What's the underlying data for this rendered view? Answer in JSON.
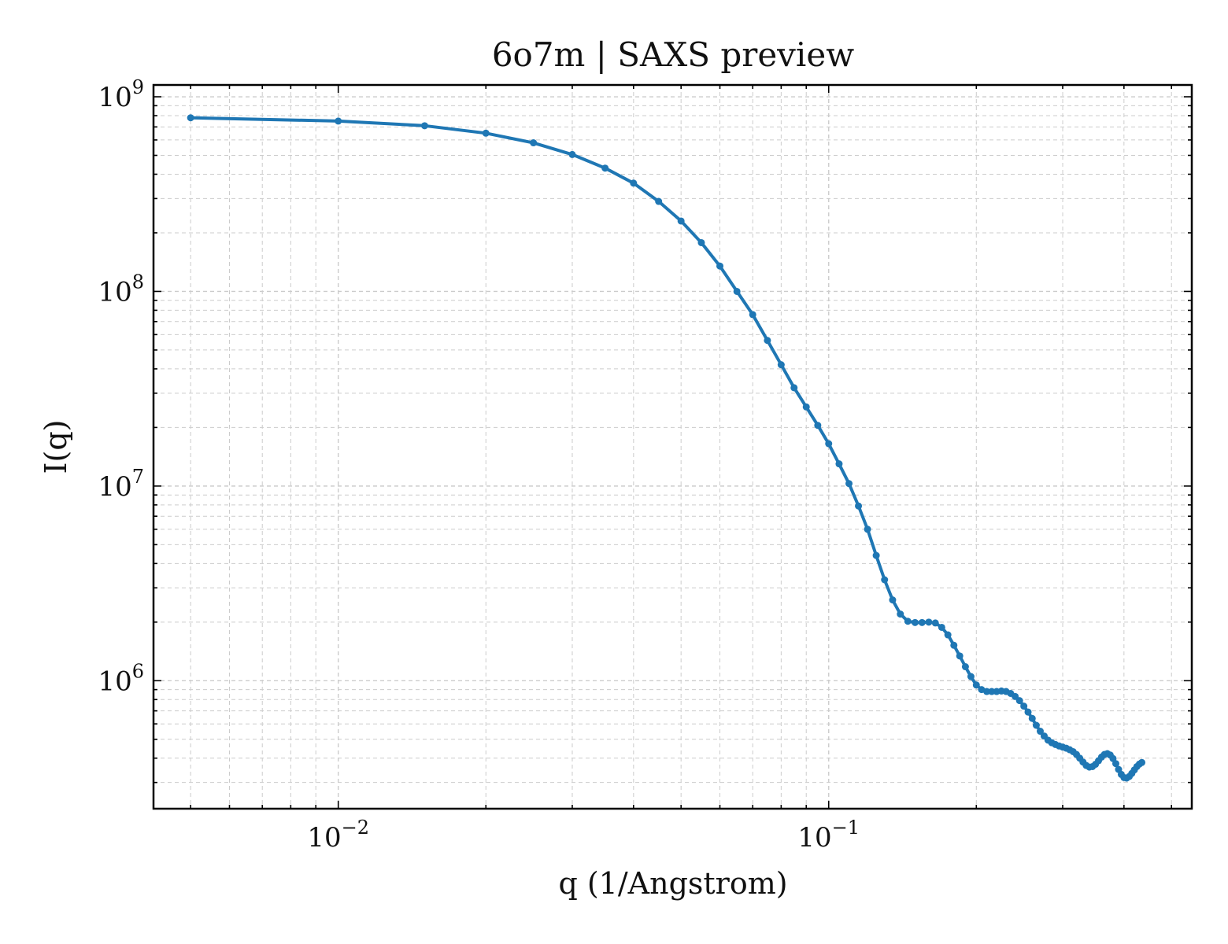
{
  "chart_data": {
    "type": "line",
    "title": "6o7m | SAXS preview",
    "xlabel": "q (1/Angstrom)",
    "ylabel": "I(q)",
    "xscale": "log",
    "yscale": "log",
    "xlim": [
      0.0042,
      0.55
    ],
    "ylim": [
      220000,
      1150000000
    ],
    "grid": true,
    "legend": "none",
    "colors": {
      "line": "#1f77b4",
      "grid": "#cccccc",
      "axes": "#000000"
    },
    "x_ticks": [
      {
        "value": 0.01,
        "base": "10",
        "exp": "−2"
      },
      {
        "value": 0.1,
        "base": "10",
        "exp": "−1"
      }
    ],
    "y_ticks": [
      {
        "value": 1000000,
        "base": "10",
        "exp": "6"
      },
      {
        "value": 10000000,
        "base": "10",
        "exp": "7"
      },
      {
        "value": 100000000,
        "base": "10",
        "exp": "8"
      },
      {
        "value": 1000000000,
        "base": "10",
        "exp": "9"
      }
    ],
    "series": [
      {
        "points": [
          [
            0.005,
            780000000
          ],
          [
            0.01,
            750000000
          ],
          [
            0.015,
            710000000
          ],
          [
            0.02,
            650000000
          ],
          [
            0.025,
            580000000
          ],
          [
            0.03,
            505000000
          ],
          [
            0.035,
            430000000
          ],
          [
            0.04,
            360000000
          ],
          [
            0.045,
            290000000
          ],
          [
            0.05,
            230000000
          ],
          [
            0.055,
            178000000
          ],
          [
            0.06,
            135000000
          ],
          [
            0.065,
            100000000
          ],
          [
            0.07,
            76000000
          ],
          [
            0.075,
            56000000
          ],
          [
            0.08,
            42000000
          ],
          [
            0.085,
            32000000
          ],
          [
            0.09,
            25500000
          ],
          [
            0.095,
            20500000
          ],
          [
            0.1,
            16500000
          ],
          [
            0.105,
            13000000
          ],
          [
            0.11,
            10300000
          ],
          [
            0.115,
            7900000
          ],
          [
            0.12,
            6000000
          ],
          [
            0.125,
            4400000
          ],
          [
            0.13,
            3300000
          ],
          [
            0.135,
            2600000
          ],
          [
            0.14,
            2200000
          ],
          [
            0.145,
            2020000
          ],
          [
            0.15,
            1990000
          ],
          [
            0.155,
            1990000
          ],
          [
            0.16,
            2000000
          ],
          [
            0.165,
            1980000
          ],
          [
            0.17,
            1880000
          ],
          [
            0.175,
            1720000
          ],
          [
            0.18,
            1520000
          ],
          [
            0.185,
            1340000
          ],
          [
            0.19,
            1180000
          ],
          [
            0.195,
            1050000
          ],
          [
            0.2,
            950000
          ],
          [
            0.205,
            900000
          ],
          [
            0.21,
            880000
          ],
          [
            0.215,
            880000
          ],
          [
            0.22,
            880000
          ],
          [
            0.225,
            885000
          ],
          [
            0.23,
            880000
          ],
          [
            0.235,
            860000
          ],
          [
            0.24,
            830000
          ],
          [
            0.245,
            790000
          ],
          [
            0.25,
            740000
          ],
          [
            0.255,
            690000
          ],
          [
            0.26,
            640000
          ],
          [
            0.265,
            590000
          ],
          [
            0.27,
            550000
          ],
          [
            0.275,
            520000
          ],
          [
            0.28,
            495000
          ],
          [
            0.285,
            480000
          ],
          [
            0.29,
            470000
          ],
          [
            0.295,
            462000
          ],
          [
            0.3,
            456000
          ],
          [
            0.305,
            450000
          ],
          [
            0.31,
            442000
          ],
          [
            0.315,
            432000
          ],
          [
            0.32,
            418000
          ],
          [
            0.325,
            400000
          ],
          [
            0.33,
            382000
          ],
          [
            0.335,
            367000
          ],
          [
            0.34,
            360000
          ],
          [
            0.345,
            362000
          ],
          [
            0.35,
            372000
          ],
          [
            0.355,
            388000
          ],
          [
            0.36,
            405000
          ],
          [
            0.365,
            418000
          ],
          [
            0.37,
            422000
          ],
          [
            0.375,
            415000
          ],
          [
            0.38,
            398000
          ],
          [
            0.385,
            375000
          ],
          [
            0.39,
            350000
          ],
          [
            0.395,
            330000
          ],
          [
            0.4,
            318000
          ],
          [
            0.405,
            316000
          ],
          [
            0.41,
            322000
          ],
          [
            0.415,
            334000
          ],
          [
            0.42,
            348000
          ],
          [
            0.425,
            362000
          ],
          [
            0.43,
            373000
          ],
          [
            0.435,
            380000
          ]
        ]
      }
    ]
  }
}
